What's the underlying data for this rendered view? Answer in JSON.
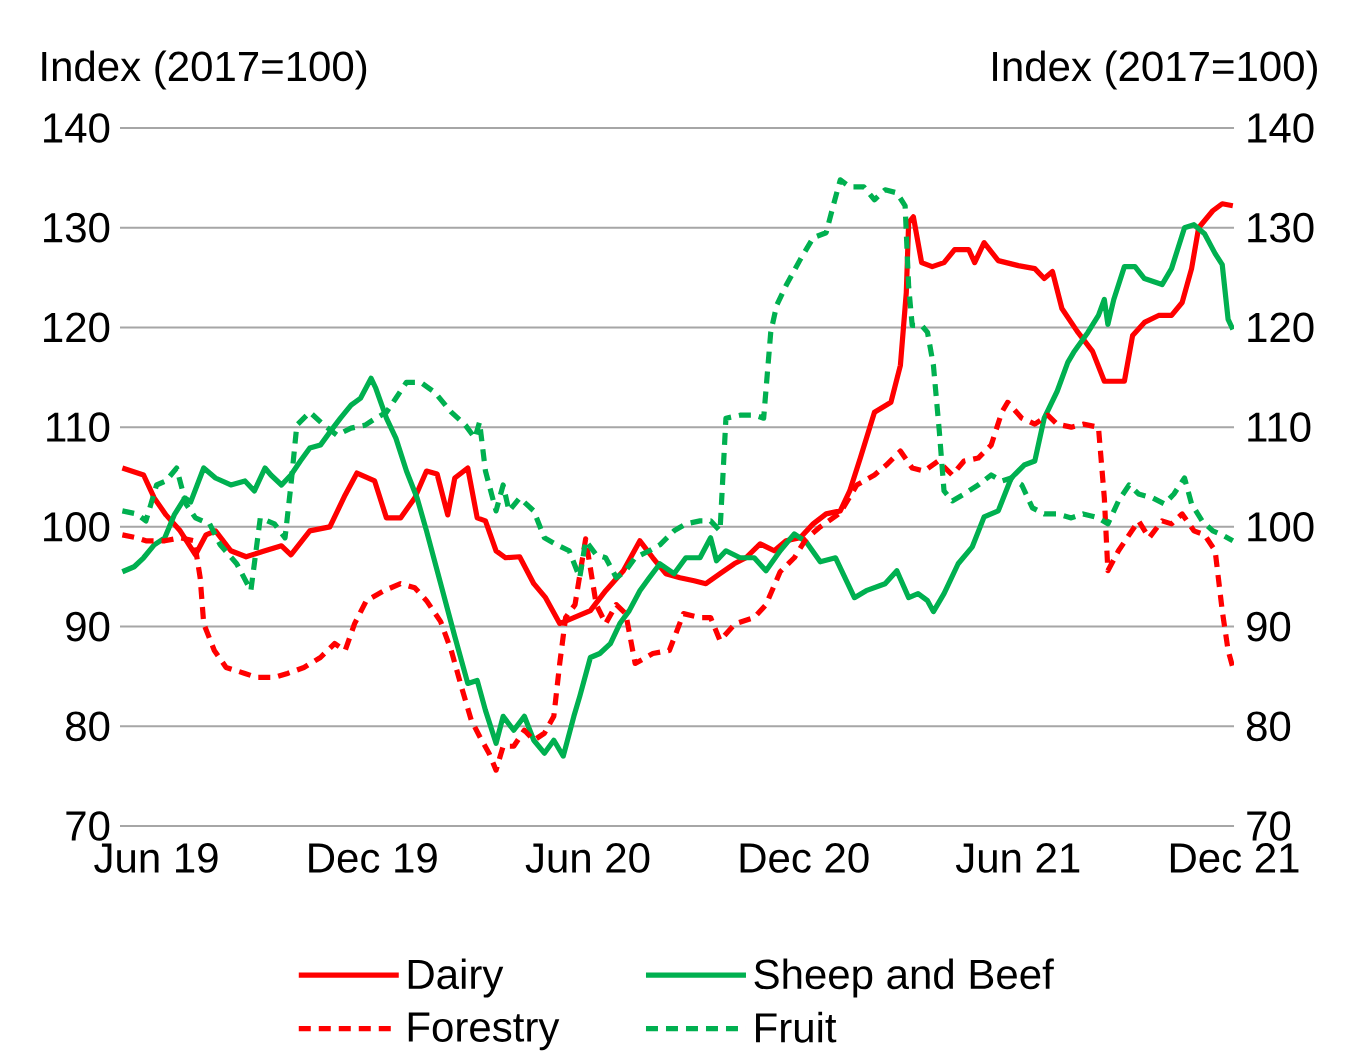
{
  "chart_data": {
    "type": "line",
    "ylabel": "Index (2017=100)",
    "y2label": "Index (2017=100)",
    "xlim": [
      "2019-05-01",
      "2021-12-01"
    ],
    "xticks": [
      {
        "value": "2019-06-01",
        "label": "Jun 19"
      },
      {
        "value": "2019-12-01",
        "label": "Dec 19"
      },
      {
        "value": "2020-06-01",
        "label": "Jun 20"
      },
      {
        "value": "2020-12-01",
        "label": "Dec 20"
      },
      {
        "value": "2021-06-01",
        "label": "Jun 21"
      },
      {
        "value": "2021-12-01",
        "label": "Dec 21"
      }
    ],
    "ylim": [
      70,
      140
    ],
    "yticks": [
      70,
      80,
      90,
      100,
      110,
      120,
      130,
      140
    ],
    "y2lim": [
      70,
      140
    ],
    "y2ticks": [
      70,
      80,
      90,
      100,
      110,
      120,
      130,
      140
    ],
    "grid": "y",
    "legend": "bottom",
    "series": [
      {
        "name": "Dairy",
        "color": "#ff0000",
        "line_style": "solid",
        "x": [
          "2019-05-03",
          "2019-05-21",
          "2019-05-30",
          "2019-06-09",
          "2019-06-21",
          "2019-07-04",
          "2019-07-13",
          "2019-07-21",
          "2019-08-03",
          "2019-08-16",
          "2019-09-01",
          "2019-09-15",
          "2019-09-23",
          "2019-10-09",
          "2019-10-26",
          "2019-11-08",
          "2019-11-18",
          "2019-12-03",
          "2019-12-13",
          "2019-12-25",
          "2020-01-06",
          "2020-01-16",
          "2020-01-25",
          "2020-02-03",
          "2020-02-09",
          "2020-02-20",
          "2020-02-28",
          "2020-03-06",
          "2020-03-15",
          "2020-03-23",
          "2020-04-04",
          "2020-04-16",
          "2020-04-26",
          "2020-05-08",
          "2020-05-20",
          "2020-06-03",
          "2020-06-16",
          "2020-07-01",
          "2020-07-15",
          "2020-07-26",
          "2020-08-06",
          "2020-08-18",
          "2020-08-30",
          "2020-09-09",
          "2020-09-21",
          "2020-10-03",
          "2020-10-13",
          "2020-10-25",
          "2020-11-06",
          "2020-11-16",
          "2020-11-28",
          "2020-12-09",
          "2020-12-20",
          "2021-01-01",
          "2021-01-09",
          "2021-01-18",
          "2021-01-30",
          "2021-02-13",
          "2021-02-21",
          "2021-02-26",
          "2021-02-28",
          "2021-03-04",
          "2021-03-11",
          "2021-03-20",
          "2021-03-30",
          "2021-04-08",
          "2021-04-20",
          "2021-04-25",
          "2021-05-03",
          "2021-05-15",
          "2021-06-01",
          "2021-06-15",
          "2021-06-23",
          "2021-06-30",
          "2021-07-08",
          "2021-07-21",
          "2021-08-03",
          "2021-08-13",
          "2021-08-30",
          "2021-09-06",
          "2021-09-16",
          "2021-09-28",
          "2021-10-09",
          "2021-10-18",
          "2021-10-26",
          "2021-11-01",
          "2021-11-13",
          "2021-11-21",
          "2021-11-30"
        ],
        "values": [
          105.9,
          105.2,
          102.9,
          101.2,
          99.6,
          97.2,
          99.2,
          99.6,
          97.6,
          97.0,
          97.6,
          98.1,
          97.2,
          99.6,
          100.0,
          103.2,
          105.4,
          104.6,
          100.9,
          100.9,
          102.9,
          105.6,
          105.3,
          101.2,
          104.9,
          105.9,
          100.9,
          100.6,
          97.6,
          96.9,
          97.0,
          94.3,
          92.9,
          90.3,
          90.9,
          91.6,
          93.6,
          95.6,
          98.6,
          96.9,
          95.3,
          94.9,
          94.6,
          94.3,
          95.3,
          96.3,
          96.9,
          98.3,
          97.6,
          98.6,
          98.9,
          100.3,
          101.3,
          101.6,
          103.6,
          106.9,
          111.5,
          112.5,
          116.2,
          123.5,
          130.5,
          131.1,
          126.5,
          126.1,
          126.5,
          127.8,
          127.8,
          126.5,
          128.5,
          126.7,
          126.2,
          125.9,
          124.9,
          125.6,
          121.9,
          119.6,
          117.6,
          114.6,
          114.6,
          119.2,
          120.5,
          121.2,
          121.2,
          122.5,
          125.9,
          130.0,
          131.7,
          132.4,
          132.2
        ]
      },
      {
        "name": "Sheep and Beef",
        "color": "#00b050",
        "line_style": "solid",
        "x": [
          "2019-05-03",
          "2019-05-13",
          "2019-05-21",
          "2019-05-30",
          "2019-06-08",
          "2019-06-16",
          "2019-06-25",
          "2019-06-30",
          "2019-07-11",
          "2019-07-21",
          "2019-08-03",
          "2019-08-15",
          "2019-08-23",
          "2019-09-01",
          "2019-09-06",
          "2019-09-15",
          "2019-09-23",
          "2019-10-01",
          "2019-10-09",
          "2019-10-18",
          "2019-10-26",
          "2019-11-04",
          "2019-11-13",
          "2019-11-21",
          "2019-11-30",
          "2019-12-04",
          "2019-12-13",
          "2019-12-21",
          "2019-12-30",
          "2020-01-08",
          "2020-01-16",
          "2020-01-28",
          "2020-02-09",
          "2020-02-20",
          "2020-02-28",
          "2020-03-06",
          "2020-03-15",
          "2020-03-21",
          "2020-03-30",
          "2020-04-08",
          "2020-04-16",
          "2020-04-25",
          "2020-05-03",
          "2020-05-11",
          "2020-05-20",
          "2020-05-25",
          "2020-06-03",
          "2020-06-11",
          "2020-06-20",
          "2020-06-28",
          "2020-07-06",
          "2020-07-15",
          "2020-07-23",
          "2020-08-01",
          "2020-08-13",
          "2020-08-23",
          "2020-09-04",
          "2020-09-13",
          "2020-09-18",
          "2020-09-26",
          "2020-10-08",
          "2020-10-20",
          "2020-10-30",
          "2020-11-11",
          "2020-11-23",
          "2020-12-03",
          "2020-12-15",
          "2020-12-28",
          "2021-01-13",
          "2021-01-23",
          "2021-02-08",
          "2021-02-18",
          "2021-02-28",
          "2021-03-08",
          "2021-03-16",
          "2021-03-21",
          "2021-03-30",
          "2021-04-11",
          "2021-04-23",
          "2021-05-03",
          "2021-05-15",
          "2021-05-26",
          "2021-06-06",
          "2021-06-15",
          "2021-06-23",
          "2021-07-04",
          "2021-07-13",
          "2021-07-18",
          "2021-07-30",
          "2021-08-08",
          "2021-08-13",
          "2021-08-16",
          "2021-08-21",
          "2021-08-30",
          "2021-09-08",
          "2021-09-16",
          "2021-10-01",
          "2021-10-09",
          "2021-10-20",
          "2021-10-28",
          "2021-11-06",
          "2021-11-15",
          "2021-11-21",
          "2021-11-26",
          "2021-11-30"
        ],
        "values": [
          95.5,
          96.0,
          96.9,
          98.2,
          98.9,
          101.2,
          102.9,
          102.5,
          105.9,
          104.9,
          104.2,
          104.6,
          103.6,
          105.9,
          105.2,
          104.2,
          105.2,
          106.6,
          107.9,
          108.2,
          109.5,
          110.9,
          112.2,
          112.9,
          114.9,
          113.9,
          110.9,
          108.9,
          105.6,
          102.9,
          99.6,
          94.3,
          89.0,
          84.3,
          84.6,
          81.6,
          78.3,
          81.0,
          79.6,
          81.0,
          78.6,
          77.3,
          78.6,
          77.0,
          81.0,
          83.0,
          86.9,
          87.3,
          88.3,
          90.3,
          91.6,
          93.6,
          94.9,
          96.3,
          95.3,
          96.9,
          96.9,
          98.9,
          96.6,
          97.6,
          96.9,
          96.9,
          95.6,
          97.6,
          99.3,
          98.5,
          96.5,
          96.9,
          92.9,
          93.6,
          94.3,
          95.6,
          92.9,
          93.3,
          92.6,
          91.5,
          93.3,
          96.3,
          98.0,
          101.0,
          101.6,
          104.9,
          106.2,
          106.6,
          110.9,
          113.6,
          116.5,
          117.5,
          119.5,
          121.2,
          122.8,
          120.3,
          122.8,
          126.1,
          126.1,
          124.9,
          124.3,
          125.9,
          130.0,
          130.3,
          129.4,
          127.4,
          126.3,
          120.8,
          119.8
        ]
      },
      {
        "name": "Forestry",
        "color": "#ff0000",
        "line_style": "dashed",
        "x": [
          "2019-05-03",
          "2019-05-15",
          "2019-05-23",
          "2019-06-08",
          "2019-06-21",
          "2019-07-03",
          "2019-07-08",
          "2019-07-11",
          "2019-07-20",
          "2019-07-30",
          "2019-08-15",
          "2019-08-25",
          "2019-09-09",
          "2019-09-20",
          "2019-10-04",
          "2019-10-18",
          "2019-10-30",
          "2019-11-08",
          "2019-11-16",
          "2019-11-26",
          "2019-12-11",
          "2019-12-25",
          "2020-01-06",
          "2020-01-16",
          "2020-01-28",
          "2020-02-06",
          "2020-02-15",
          "2020-02-23",
          "2020-03-01",
          "2020-03-09",
          "2020-03-15",
          "2020-03-21",
          "2020-03-30",
          "2020-04-08",
          "2020-04-16",
          "2020-04-25",
          "2020-05-03",
          "2020-05-08",
          "2020-05-13",
          "2020-05-21",
          "2020-05-30",
          "2020-06-08",
          "2020-06-16",
          "2020-06-25",
          "2020-07-03",
          "2020-07-11",
          "2020-07-26",
          "2020-08-09",
          "2020-08-21",
          "2020-09-04",
          "2020-09-13",
          "2020-09-21",
          "2020-10-04",
          "2020-10-20",
          "2020-10-30",
          "2020-11-11",
          "2020-11-23",
          "2020-12-03",
          "2020-12-15",
          "2021-01-01",
          "2021-01-15",
          "2021-01-30",
          "2021-02-09",
          "2021-02-21",
          "2021-03-03",
          "2021-03-13",
          "2021-03-25",
          "2021-04-06",
          "2021-04-16",
          "2021-04-28",
          "2021-05-09",
          "2021-05-18",
          "2021-05-23",
          "2021-06-04",
          "2021-06-15",
          "2021-06-26",
          "2021-07-04",
          "2021-07-16",
          "2021-07-26",
          "2021-08-08",
          "2021-08-13",
          "2021-08-16",
          "2021-08-25",
          "2021-09-03",
          "2021-09-11",
          "2021-09-20",
          "2021-10-01",
          "2021-10-09",
          "2021-10-18",
          "2021-10-28",
          "2021-11-06",
          "2021-11-15",
          "2021-11-21",
          "2021-11-26",
          "2021-11-30"
        ],
        "values": [
          99.2,
          98.9,
          98.6,
          98.6,
          98.9,
          98.6,
          94.9,
          90.3,
          87.6,
          85.9,
          85.3,
          84.9,
          84.9,
          85.3,
          85.9,
          86.9,
          88.3,
          87.6,
          90.3,
          92.6,
          93.6,
          94.3,
          93.9,
          92.6,
          90.5,
          87.6,
          83.8,
          80.6,
          79.0,
          77.3,
          75.6,
          78.0,
          78.0,
          79.6,
          78.6,
          79.3,
          81.0,
          86.3,
          90.9,
          92.2,
          98.8,
          92.2,
          90.3,
          92.2,
          91.3,
          86.3,
          87.3,
          87.6,
          91.3,
          90.9,
          90.9,
          88.6,
          90.3,
          90.9,
          92.2,
          95.5,
          96.9,
          98.8,
          100.0,
          101.4,
          104.2,
          105.2,
          106.2,
          107.6,
          105.9,
          105.6,
          106.6,
          105.2,
          106.6,
          106.9,
          108.2,
          111.5,
          112.5,
          110.9,
          110.3,
          111.2,
          110.3,
          110.0,
          110.3,
          110.0,
          102.9,
          95.6,
          97.6,
          99.2,
          100.6,
          98.9,
          100.6,
          100.3,
          101.3,
          99.6,
          99.2,
          97.6,
          91.6,
          87.6,
          85.9
        ]
      },
      {
        "name": "Fruit",
        "color": "#00b050",
        "line_style": "dashed",
        "x": [
          "2019-05-03",
          "2019-05-15",
          "2019-05-23",
          "2019-06-01",
          "2019-06-09",
          "2019-06-18",
          "2019-06-26",
          "2019-07-04",
          "2019-07-16",
          "2019-07-25",
          "2019-08-08",
          "2019-08-20",
          "2019-08-28",
          "2019-09-09",
          "2019-09-18",
          "2019-09-23",
          "2019-09-28",
          "2019-10-09",
          "2019-10-21",
          "2019-11-01",
          "2019-11-13",
          "2019-11-25",
          "2019-12-04",
          "2019-12-13",
          "2019-12-21",
          "2019-12-30",
          "2020-01-11",
          "2020-01-23",
          "2020-02-06",
          "2020-02-18",
          "2020-02-26",
          "2020-03-01",
          "2020-03-06",
          "2020-03-15",
          "2020-03-21",
          "2020-03-26",
          "2020-04-04",
          "2020-04-16",
          "2020-04-25",
          "2020-05-04",
          "2020-05-16",
          "2020-05-25",
          "2020-05-30",
          "2020-06-08",
          "2020-06-16",
          "2020-06-25",
          "2020-07-03",
          "2020-07-11",
          "2020-07-23",
          "2020-08-01",
          "2020-08-13",
          "2020-08-23",
          "2020-09-04",
          "2020-09-13",
          "2020-09-21",
          "2020-09-26",
          "2020-10-08",
          "2020-10-20",
          "2020-10-28",
          "2020-11-03",
          "2020-11-08",
          "2020-11-16",
          "2020-11-28",
          "2020-12-09",
          "2020-12-20",
          "2020-12-26",
          "2021-01-01",
          "2021-01-09",
          "2021-01-21",
          "2021-01-30",
          "2021-02-08",
          "2021-02-18",
          "2021-02-25",
          "2021-02-26",
          "2021-02-28",
          "2021-03-03",
          "2021-03-11",
          "2021-03-16",
          "2021-03-21",
          "2021-03-26",
          "2021-03-30",
          "2021-04-06",
          "2021-04-16",
          "2021-04-28",
          "2021-05-09",
          "2021-05-18",
          "2021-05-26",
          "2021-06-04",
          "2021-06-13",
          "2021-06-23",
          "2021-07-04",
          "2021-07-16",
          "2021-07-26",
          "2021-08-08",
          "2021-08-16",
          "2021-08-25",
          "2021-09-03",
          "2021-09-11",
          "2021-09-23",
          "2021-10-03",
          "2021-10-11",
          "2021-10-20",
          "2021-10-26",
          "2021-11-04",
          "2021-11-13",
          "2021-11-21",
          "2021-11-30"
        ],
        "values": [
          101.6,
          101.3,
          100.6,
          104.2,
          104.6,
          105.9,
          102.3,
          100.9,
          100.3,
          98.2,
          96.3,
          93.6,
          100.9,
          100.3,
          98.9,
          104.2,
          110.2,
          111.5,
          110.2,
          109.2,
          109.9,
          110.2,
          110.9,
          111.5,
          112.9,
          114.5,
          114.5,
          113.5,
          111.5,
          110.2,
          108.9,
          110.5,
          105.6,
          101.6,
          104.2,
          101.6,
          102.9,
          101.6,
          98.9,
          98.3,
          97.6,
          94.9,
          98.6,
          97.2,
          96.9,
          94.9,
          95.6,
          96.9,
          97.6,
          98.2,
          99.6,
          100.3,
          100.6,
          100.6,
          99.6,
          110.9,
          111.2,
          111.2,
          110.9,
          119.5,
          122.2,
          124.2,
          126.8,
          129.0,
          129.5,
          132.2,
          134.8,
          134.1,
          134.1,
          132.8,
          133.8,
          133.5,
          132.2,
          129.5,
          124.1,
          120.2,
          120.2,
          119.5,
          116.2,
          109.6,
          103.6,
          102.6,
          103.3,
          104.2,
          105.2,
          104.6,
          104.9,
          104.2,
          101.9,
          101.3,
          101.3,
          100.9,
          101.3,
          100.9,
          100.3,
          102.6,
          104.2,
          103.3,
          102.9,
          102.3,
          103.3,
          104.9,
          102.3,
          100.6,
          99.6,
          99.2,
          98.6
        ]
      }
    ]
  }
}
